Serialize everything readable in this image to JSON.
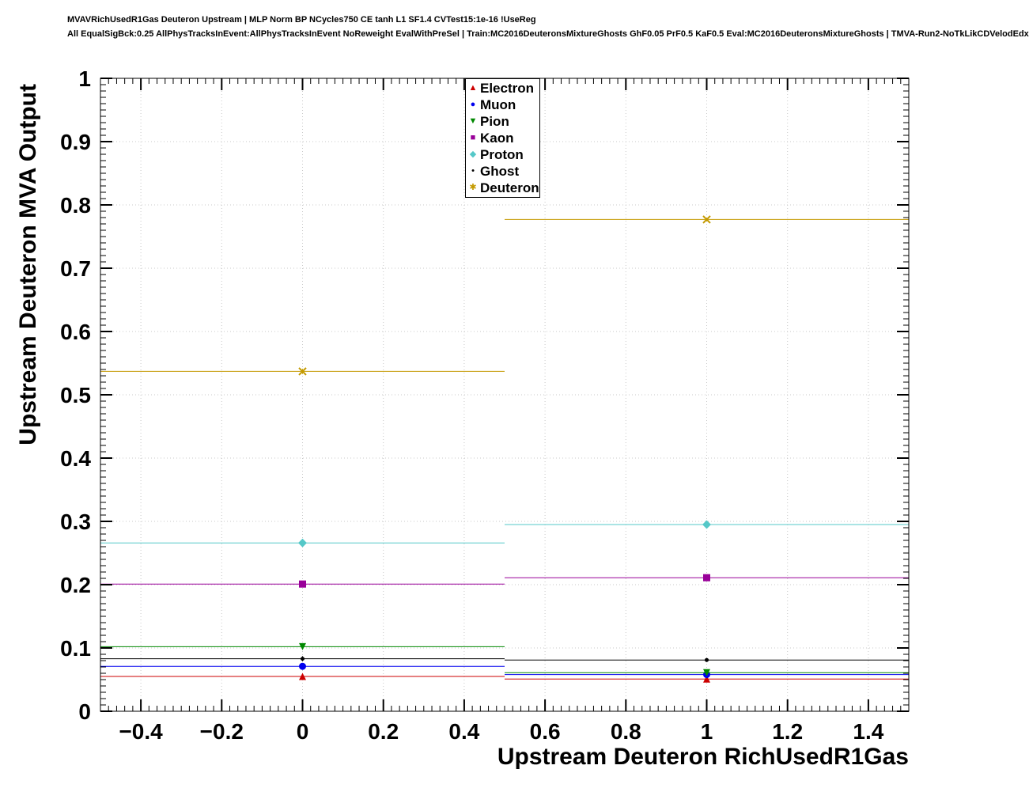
{
  "header": {
    "line1": "MVAVRichUsedR1Gas Deuteron Upstream | MLP Norm BP NCycles750 CE tanh L1 SF1.4 CVTest15:1e-16 !UseReg",
    "line2": "All EqualSigBck:0.25 AllPhysTracksInEvent:AllPhysTracksInEvent NoReweight EvalWithPreSel | Train:MC2016DeuteronsMixtureGhosts GhF0.05 PrF0.5 KaF0.5 Eval:MC2016DeuteronsMixtureGhosts | TMVA-Run2-NoTkLikCDVelodEdx"
  },
  "chart_data": {
    "type": "line",
    "subtype": "profile-histogram",
    "title": "",
    "xlabel": "Upstream Deuteron RichUsedR1Gas",
    "ylabel": "Upstream Deuteron MVA Output",
    "xlim": [
      -0.5,
      1.5
    ],
    "ylim": [
      0,
      1
    ],
    "grid": true,
    "legend_position": "top-center",
    "x_minor_step": 0.02,
    "y_minor_step": 0.01,
    "x_ticks": [
      {
        "v": -0.4,
        "label": "−0.4"
      },
      {
        "v": -0.2,
        "label": "−0.2"
      },
      {
        "v": 0,
        "label": "0"
      },
      {
        "v": 0.2,
        "label": "0.2"
      },
      {
        "v": 0.4,
        "label": "0.4"
      },
      {
        "v": 0.6,
        "label": "0.6"
      },
      {
        "v": 0.8,
        "label": "0.8"
      },
      {
        "v": 1,
        "label": "1"
      },
      {
        "v": 1.2,
        "label": "1.2"
      },
      {
        "v": 1.4,
        "label": "1.4"
      }
    ],
    "y_ticks": [
      {
        "v": 0,
        "label": "0"
      },
      {
        "v": 0.1,
        "label": "0.1"
      },
      {
        "v": 0.2,
        "label": "0.2"
      },
      {
        "v": 0.3,
        "label": "0.3"
      },
      {
        "v": 0.4,
        "label": "0.4"
      },
      {
        "v": 0.5,
        "label": "0.5"
      },
      {
        "v": 0.6,
        "label": "0.6"
      },
      {
        "v": 0.7,
        "label": "0.7"
      },
      {
        "v": 0.8,
        "label": "0.8"
      },
      {
        "v": 0.9,
        "label": "0.9"
      },
      {
        "v": 1,
        "label": "1"
      }
    ],
    "bins": {
      "centers": [
        0,
        1
      ],
      "half_width": 0.5
    },
    "series": [
      {
        "name": "Electron",
        "color": "#cc0000",
        "marker": "triangle-up",
        "values": [
          0.055,
          0.051
        ],
        "errors": [
          0.004,
          0.003
        ]
      },
      {
        "name": "Muon",
        "color": "#0000ee",
        "marker": "circle",
        "values": [
          0.071,
          0.058
        ],
        "errors": [
          0.004,
          0.003
        ]
      },
      {
        "name": "Pion",
        "color": "#008800",
        "marker": "triangle-down",
        "values": [
          0.102,
          0.061
        ],
        "errors": [
          0.004,
          0.003
        ]
      },
      {
        "name": "Kaon",
        "color": "#990099",
        "marker": "square",
        "values": [
          0.201,
          0.211
        ],
        "errors": [
          0.004,
          0.003
        ]
      },
      {
        "name": "Proton",
        "color": "#55c8c8",
        "marker": "diamond",
        "values": [
          0.266,
          0.295
        ],
        "errors": [
          0.004,
          0.003
        ]
      },
      {
        "name": "Ghost",
        "color": "#000000",
        "marker": "dot",
        "values": [
          0.083,
          0.081
        ],
        "errors": [
          0.004,
          0.003
        ]
      },
      {
        "name": "Deuteron",
        "color": "#c49a00",
        "marker": "cross",
        "values": [
          0.537,
          0.777
        ],
        "errors": [
          0.004,
          0.003
        ]
      }
    ]
  }
}
